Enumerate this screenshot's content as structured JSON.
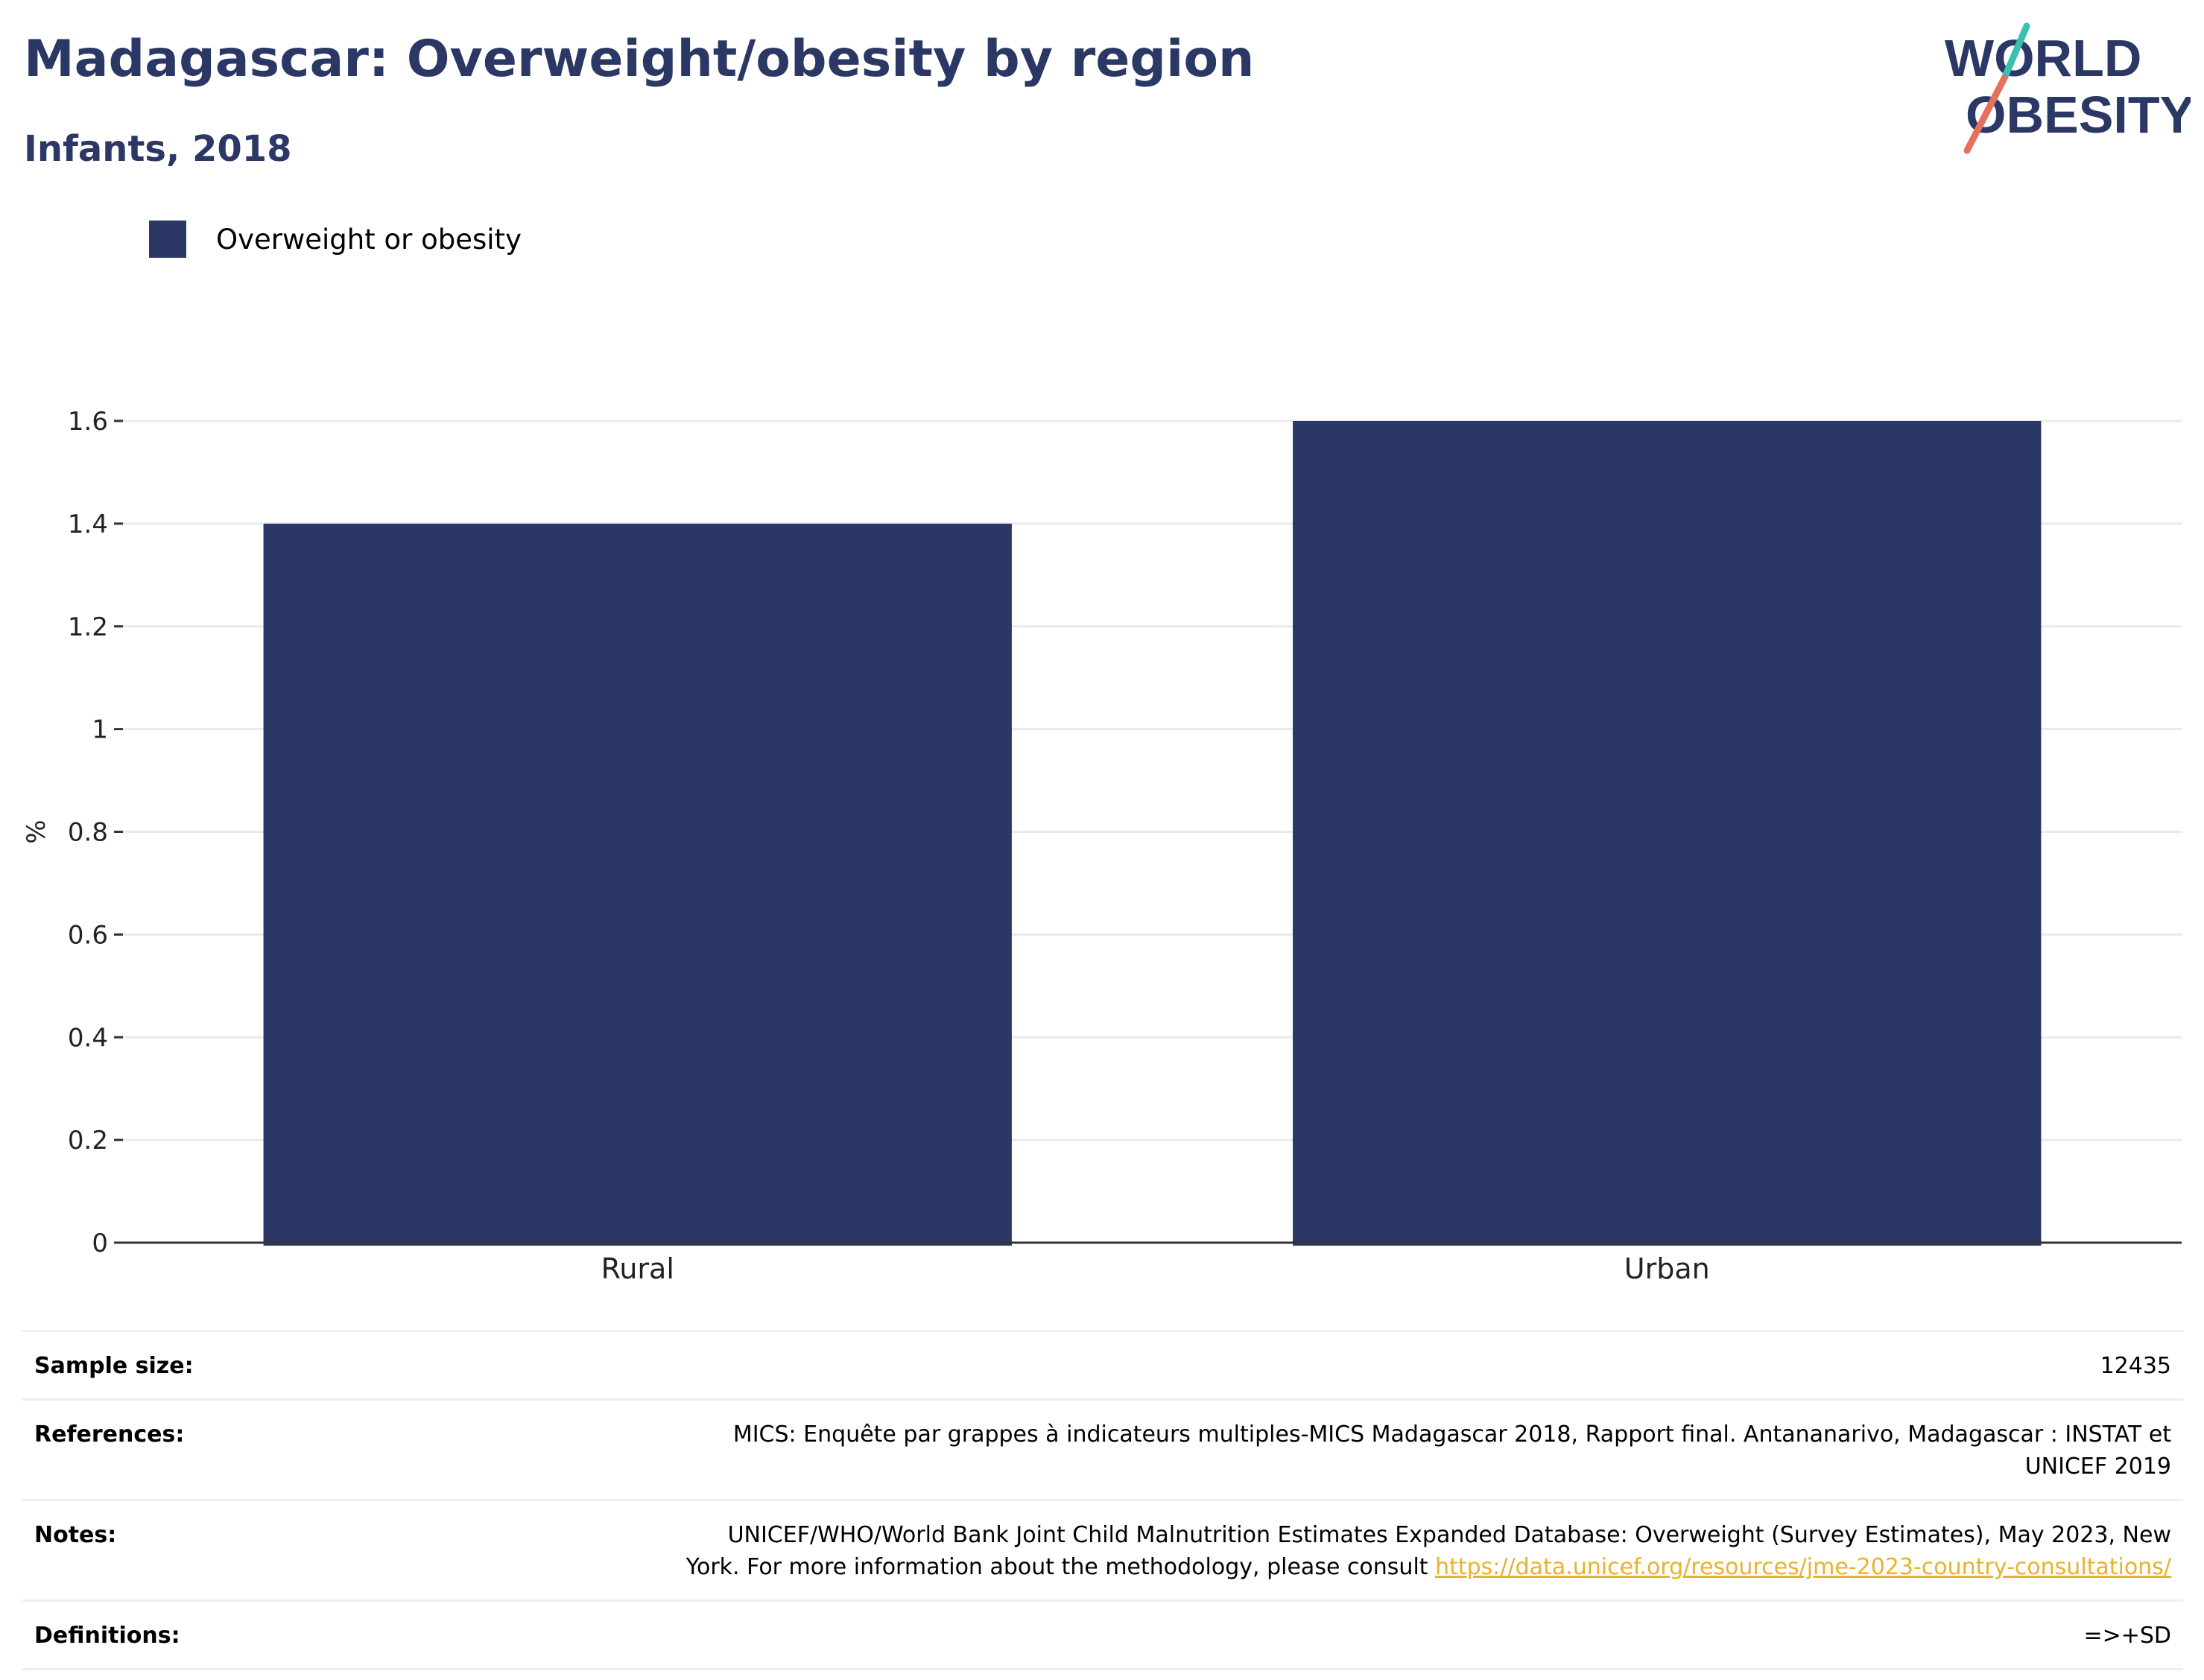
{
  "header": {
    "title": "Madagascar: Overweight/obesity by region",
    "subtitle": "Infants, 2018"
  },
  "logo": {
    "line1": "WORLD",
    "line2": "OBESITY",
    "colors": {
      "text": "#2b3764",
      "slash_top": "#3bbfb0",
      "slash_bottom": "#e4705d"
    }
  },
  "legend": {
    "label": "Overweight or obesity",
    "color": "#2b3764"
  },
  "chart_data": {
    "type": "bar",
    "categories": [
      "Rural",
      "Urban"
    ],
    "series": [
      {
        "name": "Overweight or obesity",
        "values": [
          1.4,
          1.6
        ],
        "color": "#2b3764"
      }
    ],
    "ylabel": "%",
    "xlabel": "",
    "ylim": [
      0,
      1.6
    ],
    "yticks": [
      0,
      0.2,
      0.4,
      0.6,
      0.8,
      1,
      1.2,
      1.4,
      1.6
    ],
    "ytick_labels": [
      "0",
      "0.2",
      "0.4",
      "0.6",
      "0.8",
      "1",
      "1.2",
      "1.4",
      "1.6"
    ],
    "grid": true,
    "legend_position": "top-left"
  },
  "info": {
    "sample_size": {
      "label": "Sample size:",
      "value": "12435"
    },
    "references": {
      "label": "References:",
      "value_line1": "MICS: Enquête par grappes à indicateurs multiples-MICS Madagascar 2018, Rapport final. Antananarivo, Madagascar : INSTAT et",
      "value_line2": "UNICEF 2019"
    },
    "notes": {
      "label": "Notes:",
      "value_line1": "UNICEF/WHO/World Bank Joint Child Malnutrition Estimates Expanded Database: Overweight (Survey Estimates), May 2023, New",
      "value_line2": "York. For more information about the methodology, please consult ",
      "link": "https://data.unicef.org/resources/jme-2023-country-consultations/"
    },
    "definitions": {
      "label": "Definitions:",
      "value": "=>+SD"
    }
  }
}
